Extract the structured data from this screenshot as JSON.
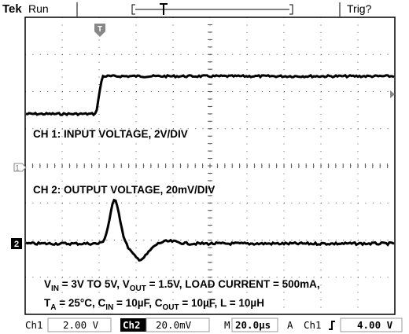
{
  "header": {
    "brand": "Tek",
    "status": "Run",
    "trigger_status": "Trig?"
  },
  "markers": {
    "trigger": "T",
    "ch1_ground": "1",
    "ch2_ground": "2"
  },
  "labels": {
    "ch1": "CH 1: INPUT VOLTAGE, 2V/DIV",
    "ch2": "CH 2: OUTPUT VOLTAGE, 20mV/DIV"
  },
  "conditions": [
    [
      {
        "text": "V"
      },
      {
        "sub": "IN"
      },
      {
        "text": " = 3V TO 5V, V"
      },
      {
        "sub": "OUT"
      },
      {
        "text": " = 1.5V, LOAD CURRENT = 500mA,"
      }
    ],
    [
      {
        "text": "T"
      },
      {
        "sub": "A"
      },
      {
        "text": " = 25°C, C"
      },
      {
        "sub": "IN"
      },
      {
        "text": " = 10µF, C"
      },
      {
        "sub": "OUT"
      },
      {
        "text": " = 10µF, L = 10µH"
      }
    ]
  ],
  "footer": {
    "ch1": "Ch1",
    "ch1_scale": "2.00 V",
    "ch2": "Ch2",
    "ch2_scale": "20.0mV",
    "timebase_label": "M",
    "timebase": "20.0µs",
    "trigger_mode": "A",
    "trigger_source": "Ch1",
    "trigger_level": "4.00 V"
  }
}
